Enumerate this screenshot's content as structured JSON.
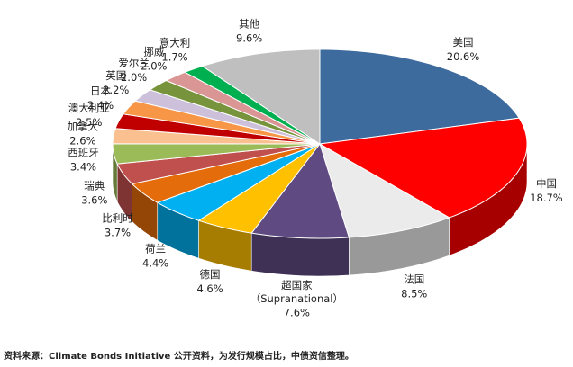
{
  "chart_data": {
    "type": "pie3d",
    "categories": [
      "美国",
      "中国",
      "法国",
      "超国家（Supranational）",
      "德国",
      "荷兰",
      "比利时",
      "瑞典",
      "西班牙",
      "加拿大",
      "澳大利亚",
      "日本",
      "英国",
      "爱尔兰",
      "挪威",
      "意大利",
      "其他"
    ],
    "values": [
      20.6,
      18.7,
      8.5,
      7.6,
      4.6,
      4.4,
      3.7,
      3.6,
      3.4,
      2.6,
      2.5,
      2.4,
      2.2,
      2.0,
      2.0,
      1.7,
      9.6
    ],
    "value_labels": [
      "20.6%",
      "18.7%",
      "8.5%",
      "7.6%",
      "4.6%",
      "4.4%",
      "3.7%",
      "3.6%",
      "3.4%",
      "2.6%",
      "2.5%",
      "2.4%",
      "2.2%",
      "2.0%",
      "2.0%",
      "1.7%",
      "9.6%"
    ],
    "colors": [
      "#3e6b9e",
      "#ff0000",
      "#ebebeb",
      "#5f4b82",
      "#ffc000",
      "#00b0f0",
      "#e46c0a",
      "#c0504d",
      "#9bbb59",
      "#fac090",
      "#c00000",
      "#f79646",
      "#ccc0da",
      "#77933c",
      "#d99694",
      "#00b050",
      "#bfbfbf"
    ],
    "source": "资料来源：Climate Bonds Initiative 公开资料，为发行规模占比，中债资信整理。"
  }
}
